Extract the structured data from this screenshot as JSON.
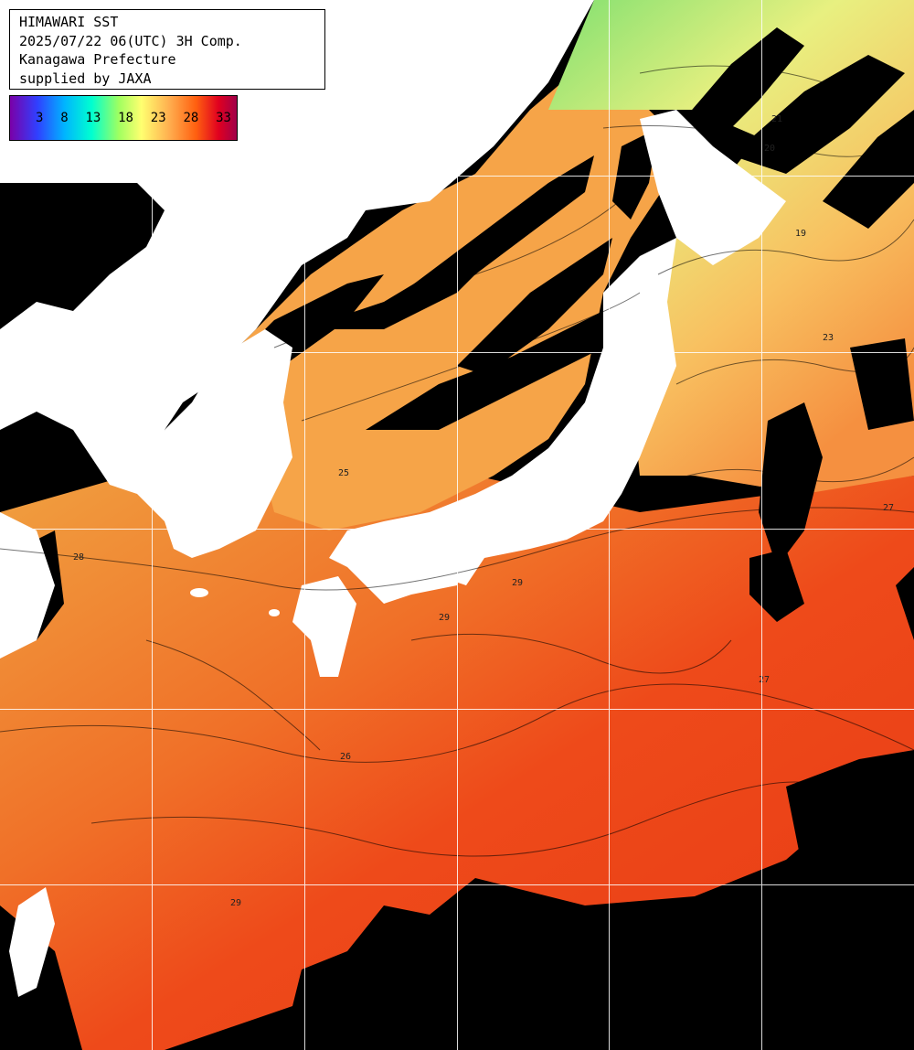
{
  "title_lines": [
    "HIMAWARI SST",
    "2025/07/22 06(UTC) 3H Comp.",
    "Kanagawa Prefecture",
    "supplied by JAXA"
  ],
  "colorbar": {
    "ticks": [
      "3",
      "8",
      "13",
      "18",
      "23",
      "28",
      "33"
    ],
    "colors": [
      "#7a00a8",
      "#3040ff",
      "#00b4ff",
      "#00ffd0",
      "#a0ff60",
      "#ffff70",
      "#ffb050",
      "#ff6010",
      "#e00020",
      "#a0004a"
    ]
  },
  "contour_labels": [
    "19",
    "20",
    "21",
    "23",
    "25",
    "26",
    "27",
    "28",
    "29"
  ],
  "colors": {
    "cloud": "#000000",
    "land": "#ffffff",
    "grid": "#ffffff",
    "sea_warm": "#f0401a",
    "sea_mid": "#f7a040",
    "sea_cool": "#d8f070",
    "sea_cold": "#70e090"
  }
}
